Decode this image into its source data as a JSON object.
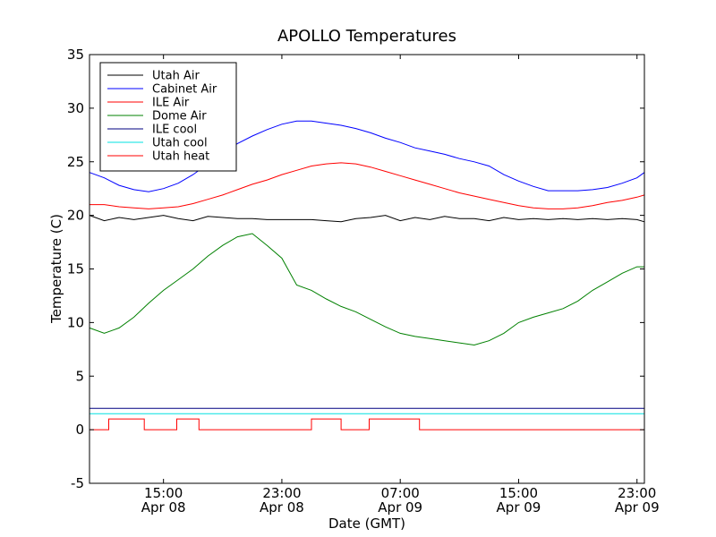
{
  "chart_data": {
    "type": "line",
    "title": "APOLLO Temperatures",
    "xlabel": "Date (GMT)",
    "ylabel": "Temperature (C)",
    "ylim": [
      -5,
      35
    ],
    "xlim_hours": [
      10,
      47.5
    ],
    "grid": false,
    "legend_position": "top-left",
    "y_ticks": [
      "-5",
      "0",
      "5",
      "10",
      "15",
      "20",
      "25",
      "30",
      "35"
    ],
    "x_ticks": [
      {
        "hour": 15,
        "time": "15:00",
        "date": "Apr 08"
      },
      {
        "hour": 23,
        "time": "23:00",
        "date": "Apr 08"
      },
      {
        "hour": 31,
        "time": "07:00",
        "date": "Apr 09"
      },
      {
        "hour": 39,
        "time": "15:00",
        "date": "Apr 09"
      },
      {
        "hour": 47,
        "time": "23:00",
        "date": "Apr 09"
      }
    ],
    "series": [
      {
        "name": "Utah Air",
        "color": "#000000",
        "x": [
          10,
          11,
          12,
          13,
          14,
          15,
          16,
          17,
          18,
          19,
          20,
          21,
          22,
          23,
          24,
          25,
          26,
          27,
          28,
          29,
          30,
          31,
          32,
          33,
          34,
          35,
          36,
          37,
          38,
          39,
          40,
          41,
          42,
          43,
          44,
          45,
          46,
          47,
          47.5
        ],
        "y": [
          20.0,
          19.5,
          19.8,
          19.6,
          19.8,
          20.0,
          19.7,
          19.5,
          19.9,
          19.8,
          19.7,
          19.7,
          19.6,
          19.6,
          19.6,
          19.6,
          19.5,
          19.4,
          19.7,
          19.8,
          20.0,
          19.5,
          19.8,
          19.6,
          19.9,
          19.7,
          19.7,
          19.5,
          19.8,
          19.6,
          19.7,
          19.6,
          19.7,
          19.6,
          19.7,
          19.6,
          19.7,
          19.6,
          19.4
        ]
      },
      {
        "name": "Cabinet Air",
        "color": "#0000ff",
        "x": [
          10,
          11,
          12,
          13,
          14,
          15,
          16,
          17,
          18,
          19,
          20,
          21,
          22,
          23,
          24,
          25,
          26,
          27,
          28,
          29,
          30,
          31,
          32,
          33,
          34,
          35,
          36,
          37,
          38,
          39,
          40,
          41,
          42,
          43,
          44,
          45,
          46,
          47,
          47.5
        ],
        "y": [
          24.0,
          23.5,
          22.8,
          22.4,
          22.2,
          22.5,
          23.0,
          23.8,
          24.8,
          25.8,
          26.7,
          27.4,
          28.0,
          28.5,
          28.8,
          28.8,
          28.6,
          28.4,
          28.1,
          27.7,
          27.2,
          26.8,
          26.3,
          26.0,
          25.7,
          25.3,
          25.0,
          24.6,
          23.8,
          23.2,
          22.7,
          22.3,
          22.3,
          22.3,
          22.4,
          22.6,
          23.0,
          23.5,
          24.0
        ]
      },
      {
        "name": "ILE Air",
        "color": "#ff0000",
        "x": [
          10,
          11,
          12,
          13,
          14,
          15,
          16,
          17,
          18,
          19,
          20,
          21,
          22,
          23,
          24,
          25,
          26,
          27,
          28,
          29,
          30,
          31,
          32,
          33,
          34,
          35,
          36,
          37,
          38,
          39,
          40,
          41,
          42,
          43,
          44,
          45,
          46,
          47,
          47.5
        ],
        "y": [
          21.0,
          21.0,
          20.8,
          20.7,
          20.6,
          20.7,
          20.8,
          21.1,
          21.5,
          21.9,
          22.4,
          22.9,
          23.3,
          23.8,
          24.2,
          24.6,
          24.8,
          24.9,
          24.8,
          24.5,
          24.1,
          23.7,
          23.3,
          22.9,
          22.5,
          22.1,
          21.8,
          21.5,
          21.2,
          20.9,
          20.7,
          20.6,
          20.6,
          20.7,
          20.9,
          21.2,
          21.4,
          21.7,
          21.9
        ]
      },
      {
        "name": "Dome Air",
        "color": "#008000",
        "x": [
          10,
          11,
          12,
          13,
          14,
          15,
          16,
          17,
          18,
          19,
          20,
          21,
          22,
          23,
          24,
          25,
          26,
          27,
          28,
          29,
          30,
          31,
          32,
          33,
          34,
          35,
          36,
          37,
          38,
          39,
          40,
          41,
          42,
          43,
          44,
          45,
          46,
          47,
          47.5
        ],
        "y": [
          9.5,
          9.0,
          9.5,
          10.5,
          11.8,
          13.0,
          14.0,
          15.0,
          16.2,
          17.2,
          18.0,
          18.3,
          17.2,
          16.0,
          13.5,
          13.0,
          12.2,
          11.5,
          11.0,
          10.3,
          9.6,
          9.0,
          8.7,
          8.5,
          8.3,
          8.1,
          7.9,
          8.3,
          9.0,
          10.0,
          10.5,
          10.9,
          11.3,
          12.0,
          13.0,
          13.8,
          14.6,
          15.2,
          15.2
        ]
      },
      {
        "name": "ILE cool",
        "color": "#000080",
        "x": [
          10,
          47.5
        ],
        "y": [
          2.0,
          2.0
        ]
      },
      {
        "name": "Utah cool",
        "color": "#00e0e0",
        "x": [
          10,
          47.5
        ],
        "y": [
          1.5,
          1.5
        ]
      },
      {
        "name": "Utah heat",
        "color": "#ff0000",
        "x": [
          10,
          11.3,
          11.3,
          13.7,
          13.7,
          15.9,
          15.9,
          17.4,
          17.4,
          25.0,
          25.0,
          27.0,
          27.0,
          28.9,
          28.9,
          32.3,
          32.3,
          47.5
        ],
        "y": [
          0,
          0,
          1,
          1,
          0,
          0,
          1,
          1,
          0,
          0,
          1,
          1,
          0,
          0,
          1,
          1,
          0,
          0
        ]
      }
    ]
  }
}
